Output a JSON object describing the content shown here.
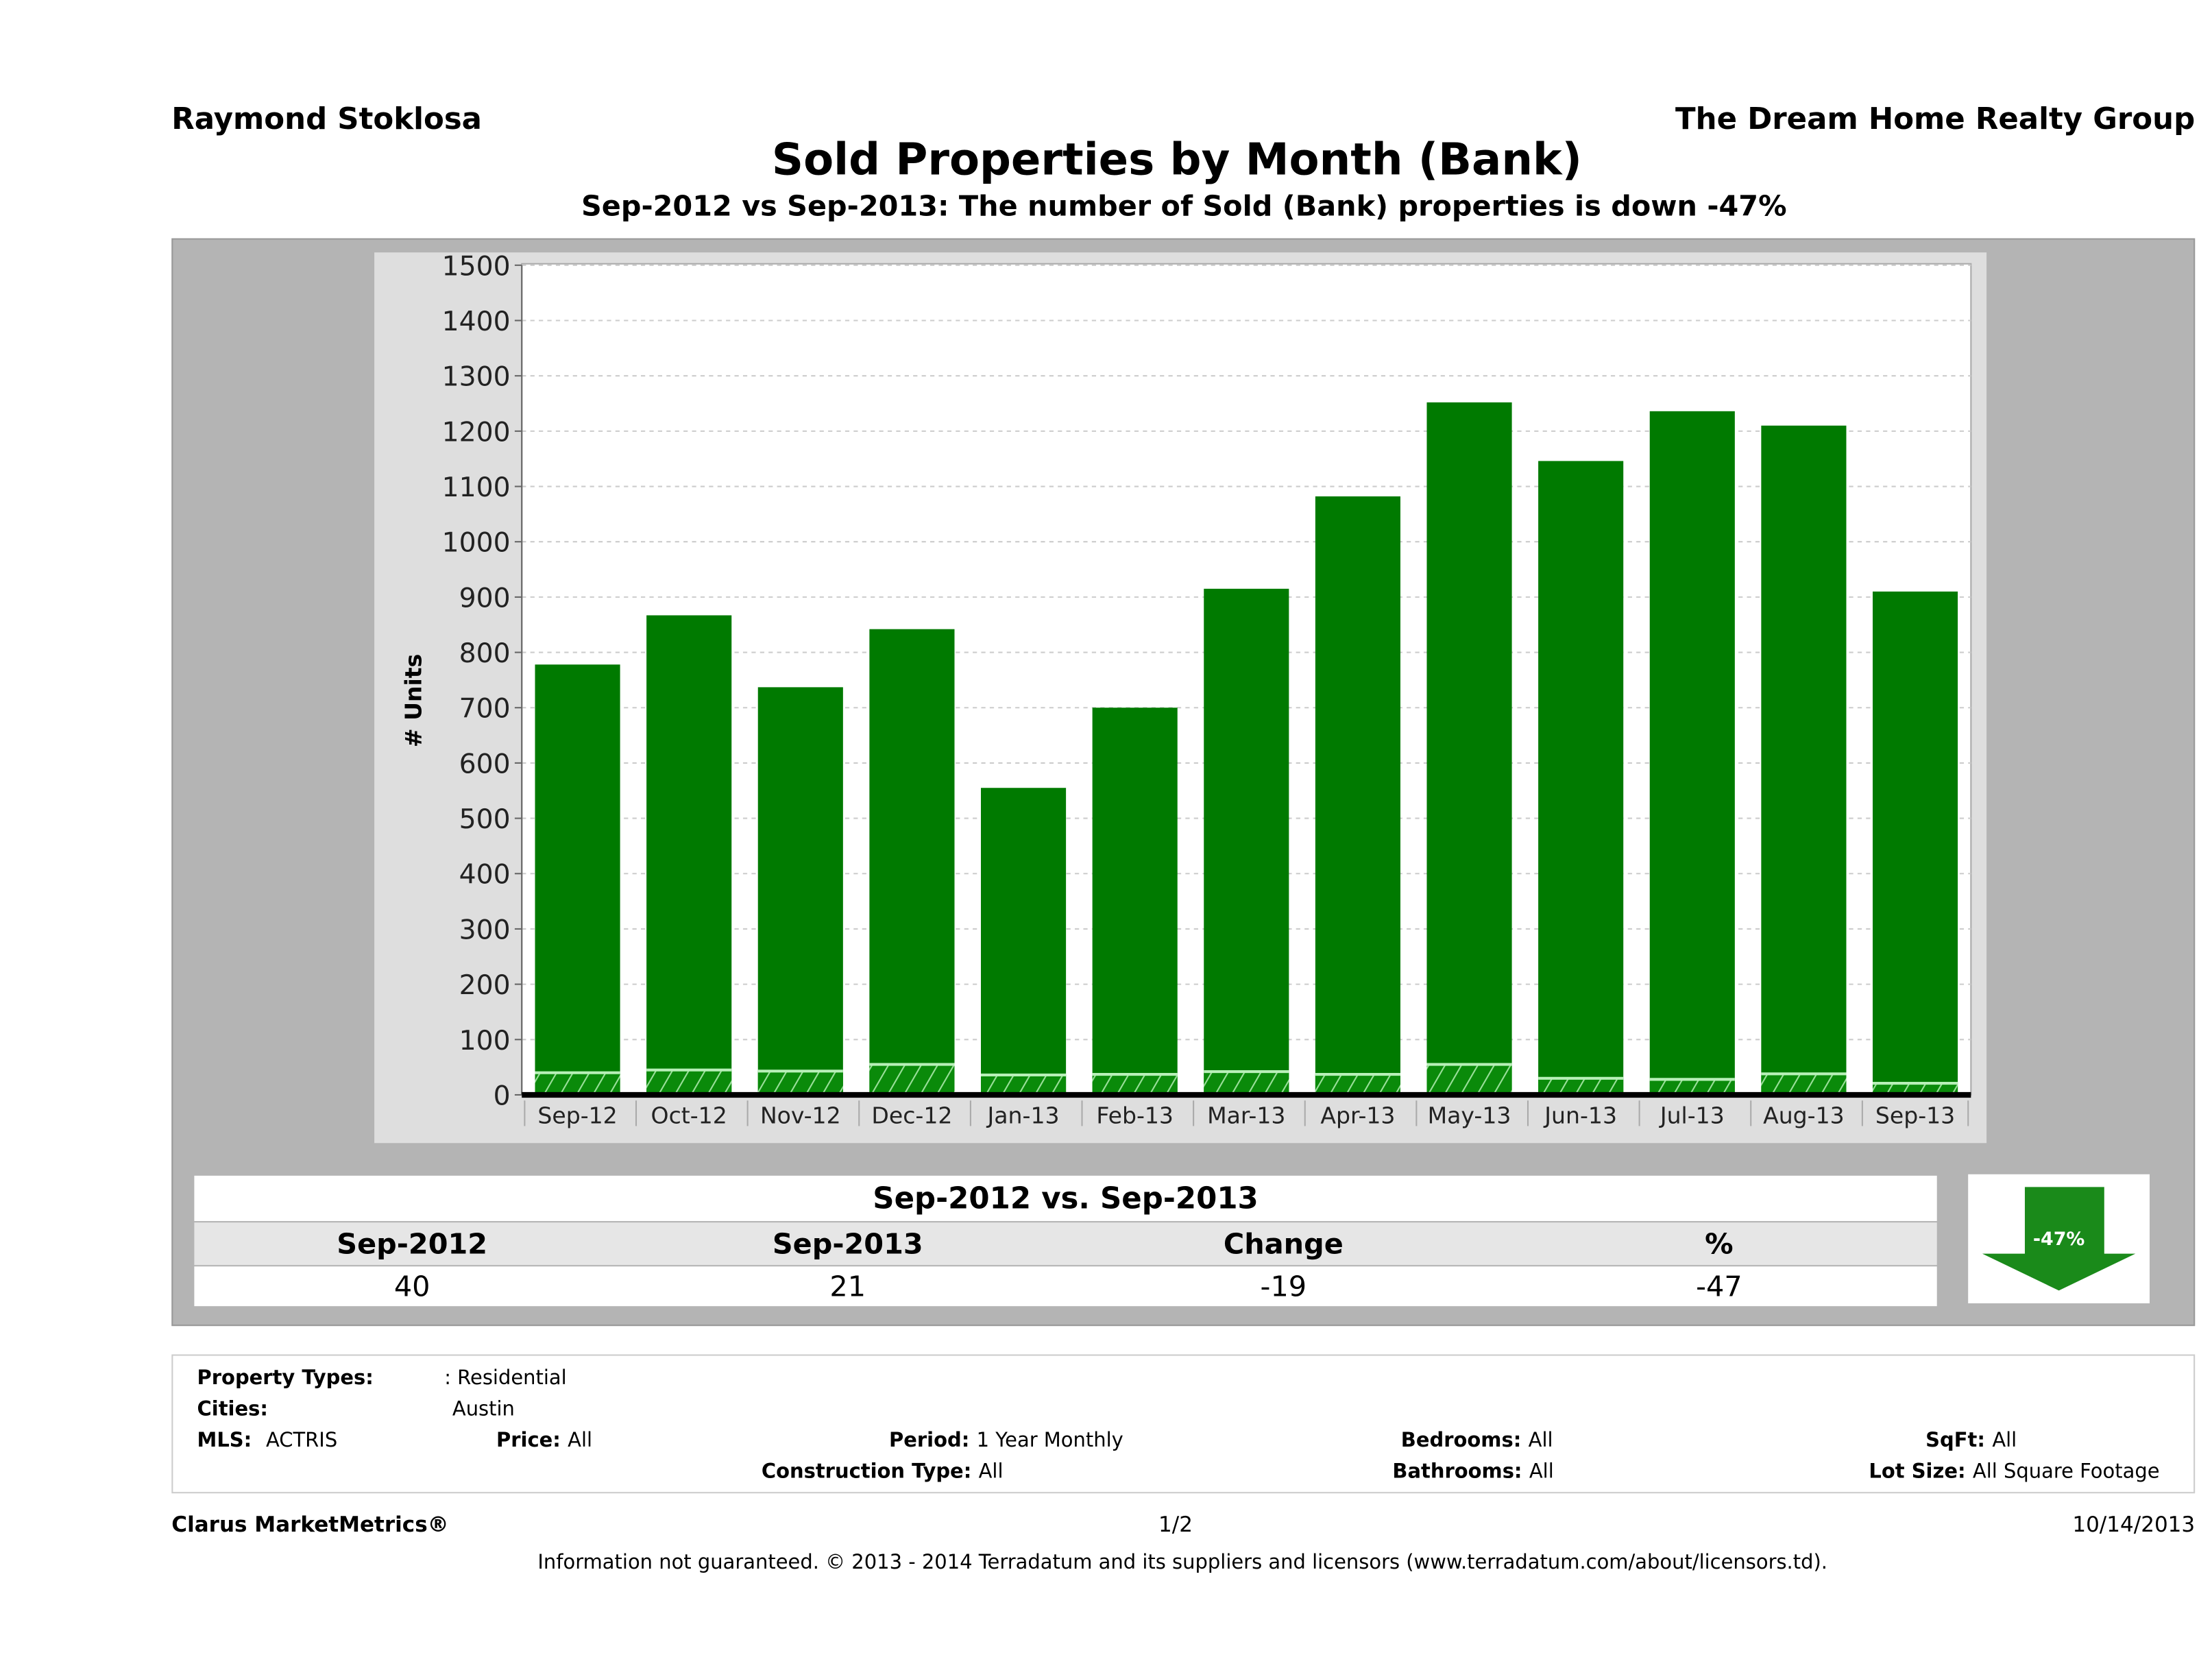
{
  "header": {
    "agent": "Raymond Stoklosa",
    "company": "The Dream Home Realty Group"
  },
  "title": "Sold Properties by Month (Bank)",
  "subtitle": "Sep-2012 vs Sep-2013: The number of Sold (Bank)  properties is down -47%",
  "chart_data": {
    "type": "bar",
    "title": "",
    "xlabel": "",
    "ylabel": "# Units",
    "ylim": [
      0,
      1500
    ],
    "yticks": [
      0,
      100,
      200,
      300,
      400,
      500,
      600,
      700,
      800,
      900,
      1000,
      1100,
      1200,
      1300,
      1400,
      1500
    ],
    "grid": true,
    "categories": [
      "Sep-12",
      "Oct-12",
      "Nov-12",
      "Dec-12",
      "Jan-13",
      "Feb-13",
      "Mar-13",
      "Apr-13",
      "May-13",
      "Jun-13",
      "Jul-13",
      "Aug-13",
      "Sep-13"
    ],
    "series": [
      {
        "values": [
          778,
          867,
          737,
          842,
          555,
          700,
          915,
          1082,
          1252,
          1146,
          1236,
          1210,
          910
        ],
        "color": "#007a00"
      },
      {
        "values": [
          40,
          45,
          43,
          55,
          36,
          37,
          42,
          37,
          55,
          30,
          28,
          38,
          21
        ],
        "color": "#0a8a0a",
        "pattern": "hatched"
      }
    ]
  },
  "summary": {
    "heading": "Sep-2012 vs. Sep-2013",
    "columns": [
      "Sep-2012",
      "Sep-2013",
      "Change",
      "%"
    ],
    "values": [
      "40",
      "21",
      "-19",
      "-47"
    ],
    "badge": "-47%",
    "badge_color": "#1a8a1a",
    "direction": "down"
  },
  "filters": {
    "property_types_label": "Property Types:",
    "property_types": ": Residential",
    "cities_label": "Cities:",
    "cities": "Austin",
    "mls_label": "MLS:",
    "mls": "ACTRIS",
    "price_label": "Price:",
    "price": "All",
    "period_label": "Period:",
    "period": "1 Year Monthly",
    "bedrooms_label": "Bedrooms:",
    "bedrooms": "All",
    "sqft_label": "SqFt:",
    "sqft": "All",
    "construction_label": "Construction Type:",
    "construction": "All",
    "bathrooms_label": "Bathrooms:",
    "bathrooms": "All",
    "lot_label": "Lot Size:",
    "lot": "All Square Footage"
  },
  "footer": {
    "brand": "Clarus MarketMetrics®",
    "page": "1/2",
    "date": "10/14/2013",
    "disclaimer": "Information not guaranteed. © 2013 - 2014 Terradatum and its suppliers and licensors (www.terradatum.com/about/licensors.td)."
  }
}
